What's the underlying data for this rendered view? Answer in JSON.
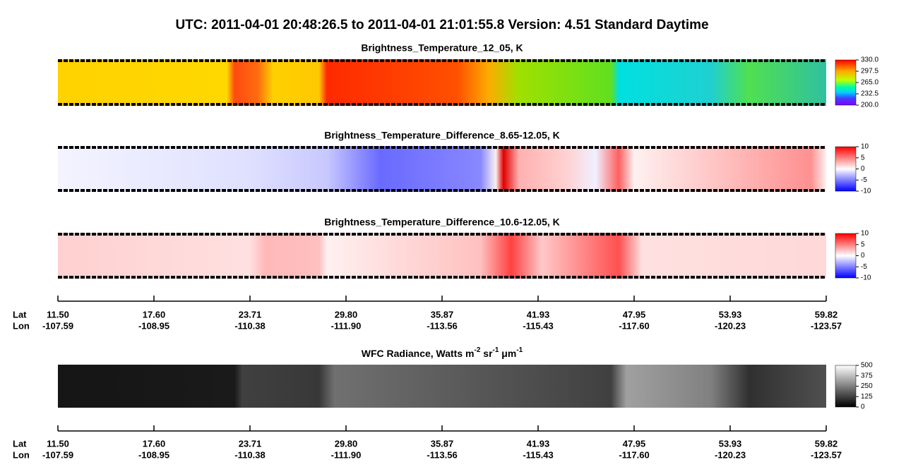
{
  "title": "UTC:  2011-04-01   20:48:26.5  to  2011-04-01   21:01:55.8    Version: 4.51  Standard Daytime",
  "panels": [
    {
      "title": "Brightness_Temperature_12_05, K",
      "colorbar_ticks": [
        "330.0",
        "297.5",
        "265.0",
        "232.5",
        "200.0"
      ]
    },
    {
      "title": "Brightness_Temperature_Difference_8.65-12.05, K",
      "colorbar_ticks": [
        "10",
        "5",
        "0",
        "-5",
        "-10"
      ]
    },
    {
      "title": "Brightness_Temperature_Difference_10.6-12.05, K",
      "colorbar_ticks": [
        "10",
        "5",
        "0",
        "-5",
        "-10"
      ]
    },
    {
      "title": "WFC Radiance, Watts m",
      "title_sup1": "-2",
      "title_mid": " sr",
      "title_sup2": "-1",
      "title_mid2": " μm",
      "title_sup3": "-1",
      "colorbar_ticks": [
        "500",
        "375",
        "250",
        "125",
        "0"
      ]
    }
  ],
  "axis": {
    "lat_label": "Lat",
    "lon_label": "Lon",
    "lat": [
      "11.50",
      "17.60",
      "23.71",
      "29.80",
      "35.87",
      "41.93",
      "47.95",
      "53.93",
      "59.82"
    ],
    "lon": [
      "-107.59",
      "-108.95",
      "-110.38",
      "-111.90",
      "-113.56",
      "-115.43",
      "-117.60",
      "-120.23",
      "-123.57"
    ]
  }
}
